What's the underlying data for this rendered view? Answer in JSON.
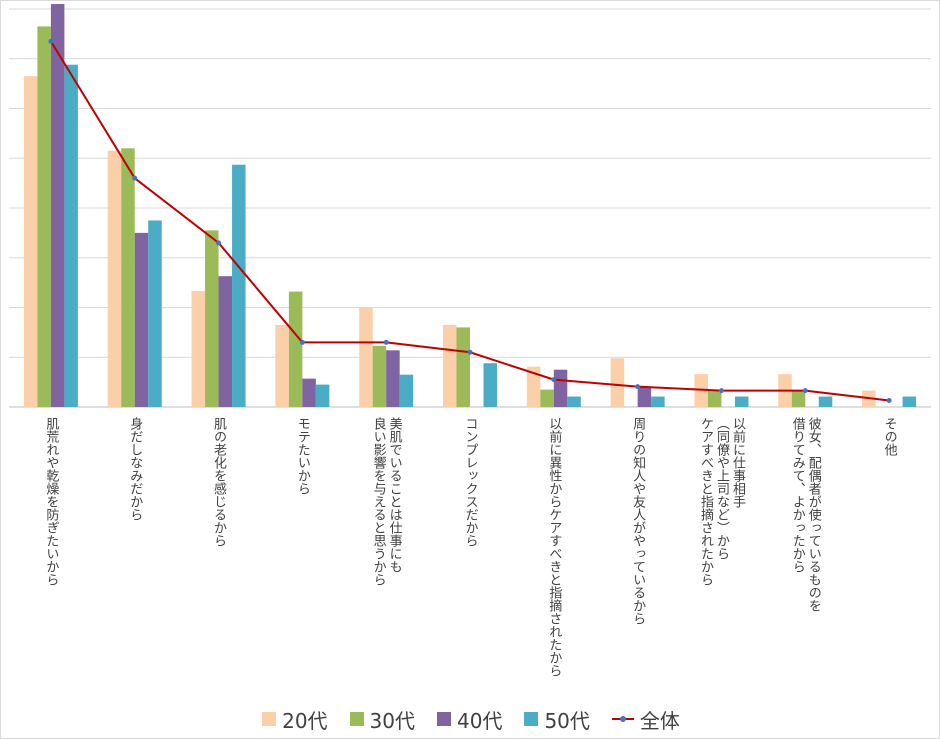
{
  "chart_data": {
    "type": "bar",
    "title": "",
    "xlabel": "",
    "ylabel": "",
    "ylim": [
      0,
      80
    ],
    "grid": true,
    "categories": [
      [
        "肌荒れや乾燥を防ぎたいから"
      ],
      [
        "身だしなみだから"
      ],
      [
        "肌の老化を感じるから"
      ],
      [
        "モテたいから"
      ],
      [
        "美肌でいることは仕事にも",
        "良い影響を与えると思うから"
      ],
      [
        "コンプレックスだから"
      ],
      [
        "以前に異性からケアすべきと指摘されたから"
      ],
      [
        "周りの知人や友人がやっているから"
      ],
      [
        "以前に仕事相手",
        "（同僚や上司など）から",
        "ケアすべきと指摘されたから"
      ],
      [
        "彼女、配偶者が使っているものを",
        "借りてみて、よかったから"
      ],
      [
        "その他"
      ]
    ],
    "series": [
      {
        "name": "20代",
        "color": "#fbcfa8",
        "values": [
          66.5,
          51.5,
          23.3,
          16.5,
          20.0,
          16.5,
          8.1,
          9.8,
          6.6,
          6.6,
          3.3
        ]
      },
      {
        "name": "30代",
        "color": "#9bbb59",
        "values": [
          76.5,
          52.0,
          35.5,
          23.2,
          12.3,
          16.0,
          3.5,
          0,
          3.3,
          3.3,
          0
        ]
      },
      {
        "name": "40代",
        "color": "#8064a2",
        "values": [
          81.0,
          35.0,
          26.3,
          5.7,
          11.4,
          0,
          7.5,
          4.0,
          0,
          0,
          0
        ]
      },
      {
        "name": "50代",
        "color": "#4bacc6",
        "values": [
          68.8,
          37.5,
          48.7,
          4.5,
          6.5,
          8.8,
          2.1,
          2.1,
          2.1,
          2.1,
          2.1
        ]
      }
    ],
    "line": {
      "name": "全体",
      "color": "#c00000",
      "marker_color": "#4472c4",
      "values": [
        73.5,
        46.0,
        33.0,
        13.0,
        13.0,
        11.0,
        5.5,
        4.1,
        3.3,
        3.3,
        1.3
      ]
    },
    "legend_position": "bottom"
  }
}
